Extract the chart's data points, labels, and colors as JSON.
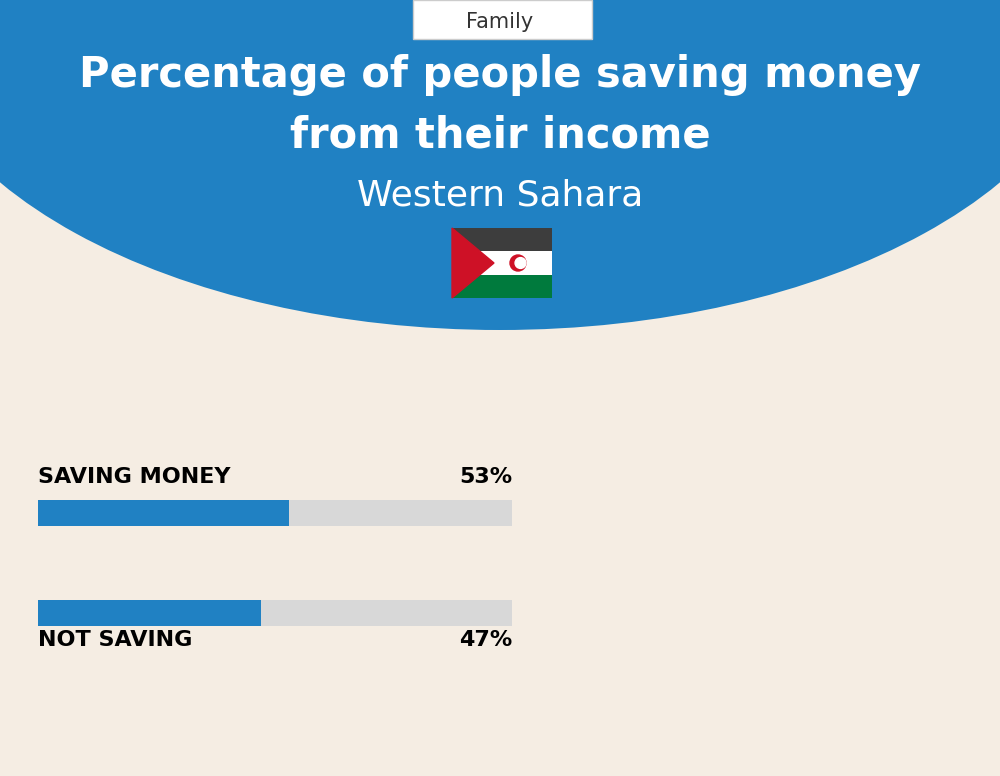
{
  "title_line1": "Percentage of people saving money",
  "title_line2": "from their income",
  "subtitle": "Western Sahara",
  "category_label": "Family",
  "bar1_label": "SAVING MONEY",
  "bar1_value": 53,
  "bar1_pct": "53%",
  "bar2_label": "NOT SAVING",
  "bar2_value": 47,
  "bar2_pct": "47%",
  "blue_color": "#2081C3",
  "bg_color": "#F5EDE3",
  "bar_fill_color": "#2081C3",
  "bar_empty_color": "#D8D8D8",
  "title_color": "#FFFFFF",
  "label_color": "#000000",
  "family_box_bg": "#FFFFFF",
  "family_text_color": "#333333",
  "family_box_border": "#CCCCCC"
}
